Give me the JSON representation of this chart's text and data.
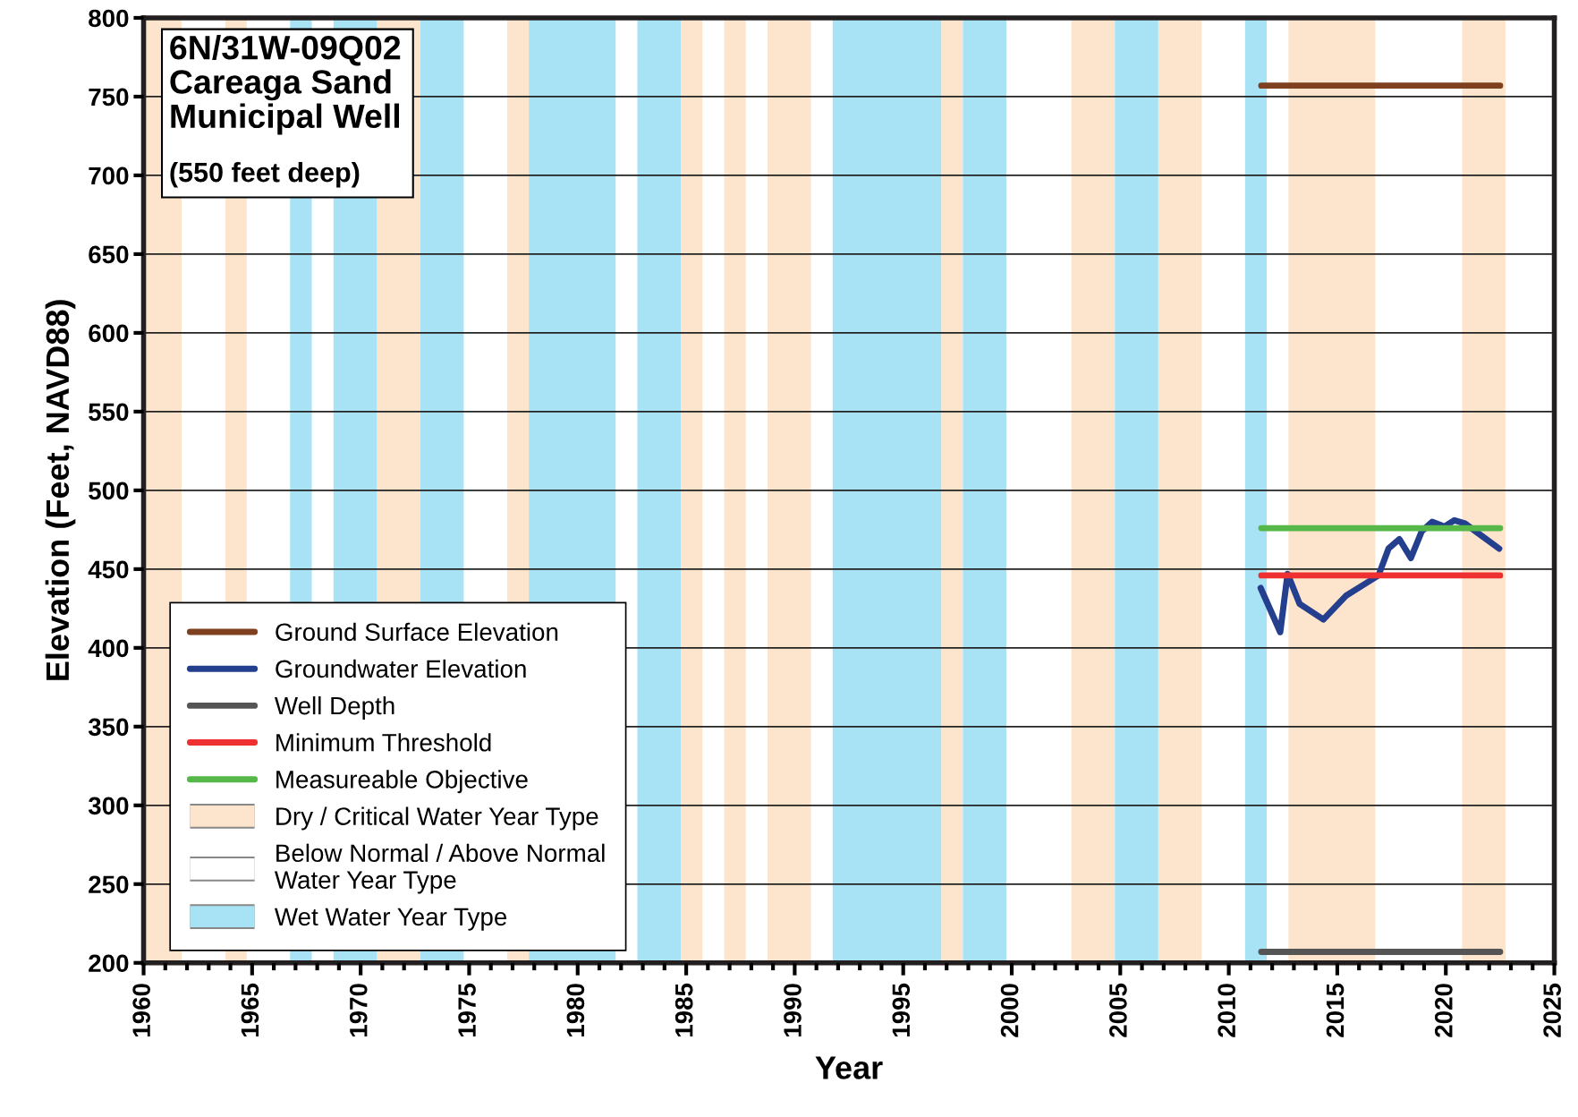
{
  "chart_data": {
    "type": "line",
    "title": "6N/31W-09Q02\nCareaga Sand\nMunicipal Well",
    "subtitle": "(550 feet deep)",
    "xlabel": "Year",
    "ylabel": "Elevation (Feet, NAVD88)",
    "xlim": [
      1960,
      2025
    ],
    "xticks": [
      1960,
      1965,
      1970,
      1975,
      1980,
      1985,
      1990,
      1995,
      2000,
      2005,
      2010,
      2015,
      2020,
      2025
    ],
    "ylim": [
      200,
      800
    ],
    "yticks": [
      200,
      250,
      300,
      350,
      400,
      450,
      500,
      550,
      600,
      650,
      700,
      750,
      800
    ],
    "grid": "y",
    "legend": "bottom left",
    "marker": "none",
    "line_style": "solid",
    "series": [
      {
        "name": "Ground Surface Elevation",
        "color": "#7f4020",
        "x": [
          2011.5,
          2022.5
        ],
        "values": [
          757,
          757
        ]
      },
      {
        "name": "Groundwater Elevation",
        "color": "#253f8f",
        "x": [
          2011.47,
          2012.37,
          2012.71,
          2013.26,
          2014.36,
          2015.39,
          2016.9,
          2017.36,
          2017.86,
          2018.39,
          2018.89,
          2019.37,
          2019.93,
          2020.4,
          2020.88,
          2021.37,
          2022.46
        ],
        "values": [
          438,
          410,
          447,
          428,
          418,
          433,
          446,
          463,
          469,
          457,
          474,
          480,
          477,
          481,
          479,
          474,
          463
        ]
      },
      {
        "name": "Well Depth",
        "color": "#555555",
        "x": [
          2011.5,
          2022.5
        ],
        "values": [
          207,
          207
        ]
      },
      {
        "name": "Minimum Threshold",
        "color": "#ee3030",
        "x": [
          2011.5,
          2022.5
        ],
        "values": [
          446,
          446
        ]
      },
      {
        "name": "Measureable Objective",
        "color": "#55b848",
        "x": [
          2011.5,
          2022.5
        ],
        "values": [
          476,
          476
        ]
      }
    ],
    "bands": [
      {
        "axis": "x",
        "from": 1963.75,
        "to": 1964.75,
        "label": "Dry / Critical Water Year Type",
        "color": "#fde4cc"
      },
      {
        "axis": "x",
        "from": 1960,
        "to": 1961.75,
        "color": "#fde4cc"
      },
      {
        "axis": "x",
        "from": 1970.75,
        "to": 1972.75,
        "color": "#fde4cc"
      },
      {
        "axis": "x",
        "from": 1976.75,
        "to": 1977.75,
        "color": "#fde4cc"
      },
      {
        "axis": "x",
        "from": 1984.75,
        "to": 1985.75,
        "color": "#fde4cc"
      },
      {
        "axis": "x",
        "from": 1986.75,
        "to": 1987.75,
        "color": "#fde4cc"
      },
      {
        "axis": "x",
        "from": 1988.75,
        "to": 1990.75,
        "color": "#fde4cc"
      },
      {
        "axis": "x",
        "from": 1996.75,
        "to": 1997.75,
        "color": "#fde4cc"
      },
      {
        "axis": "x",
        "from": 2002.75,
        "to": 2004.75,
        "color": "#fde4cc"
      },
      {
        "axis": "x",
        "from": 2006.75,
        "to": 2008.75,
        "color": "#fde4cc"
      },
      {
        "axis": "x",
        "from": 2012.75,
        "to": 2016.75,
        "color": "#fde4cc"
      },
      {
        "axis": "x",
        "from": 2020.75,
        "to": 2022.75,
        "color": "#fde4cc"
      },
      {
        "axis": "x",
        "from": 1961.75,
        "to": 1963.75,
        "label": "Below Normal / Above Normal\nWater Year Type",
        "color": "#ffffff"
      },
      {
        "axis": "x",
        "from": 1966.75,
        "to": 1967.75,
        "label": "Wet Water Year Type",
        "color": "#a8e2f5"
      },
      {
        "axis": "x",
        "from": 1968.75,
        "to": 1970.75,
        "color": "#a8e2f5"
      },
      {
        "axis": "x",
        "from": 1972.75,
        "to": 1974.75,
        "color": "#a8e2f5"
      },
      {
        "axis": "x",
        "from": 1977.75,
        "to": 1981.75,
        "color": "#a8e2f5"
      },
      {
        "axis": "x",
        "from": 1982.75,
        "to": 1984.75,
        "color": "#a8e2f5"
      },
      {
        "axis": "x",
        "from": 1991.75,
        "to": 1996.75,
        "color": "#a8e2f5"
      },
      {
        "axis": "x",
        "from": 1997.75,
        "to": 1999.75,
        "color": "#a8e2f5"
      },
      {
        "axis": "x",
        "from": 2004.75,
        "to": 2006.75,
        "color": "#a8e2f5"
      },
      {
        "axis": "x",
        "from": 2010.75,
        "to": 2011.75,
        "color": "#a8e2f5"
      }
    ]
  }
}
